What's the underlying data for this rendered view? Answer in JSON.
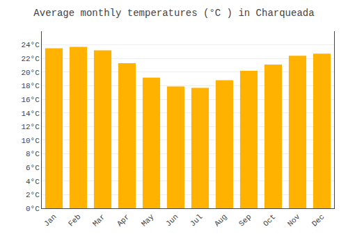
{
  "chart_data": {
    "type": "bar",
    "title": "Average monthly temperatures (°C ) in Charqueada",
    "categories": [
      "Jan",
      "Feb",
      "Mar",
      "Apr",
      "May",
      "Jun",
      "Jul",
      "Aug",
      "Sep",
      "Oct",
      "Nov",
      "Dec"
    ],
    "values": [
      23.5,
      23.7,
      23.2,
      21.3,
      19.2,
      17.9,
      17.7,
      18.8,
      20.2,
      21.1,
      22.4,
      22.7
    ],
    "color": "#FFB300",
    "ylim": [
      0,
      26
    ],
    "yticks": [
      {
        "value": 0,
        "label": "0°C"
      },
      {
        "value": 2,
        "label": "2°C"
      },
      {
        "value": 4,
        "label": "4°C"
      },
      {
        "value": 6,
        "label": "6°C"
      },
      {
        "value": 8,
        "label": "8°C"
      },
      {
        "value": 10,
        "label": "10°C"
      },
      {
        "value": 12,
        "label": "12°C"
      },
      {
        "value": 14,
        "label": "14°C"
      },
      {
        "value": 16,
        "label": "16°C"
      },
      {
        "value": 18,
        "label": "18°C"
      },
      {
        "value": 20,
        "label": "20°C"
      },
      {
        "value": 22,
        "label": "22°C"
      },
      {
        "value": 24,
        "label": "24°C"
      }
    ],
    "grid": true
  }
}
